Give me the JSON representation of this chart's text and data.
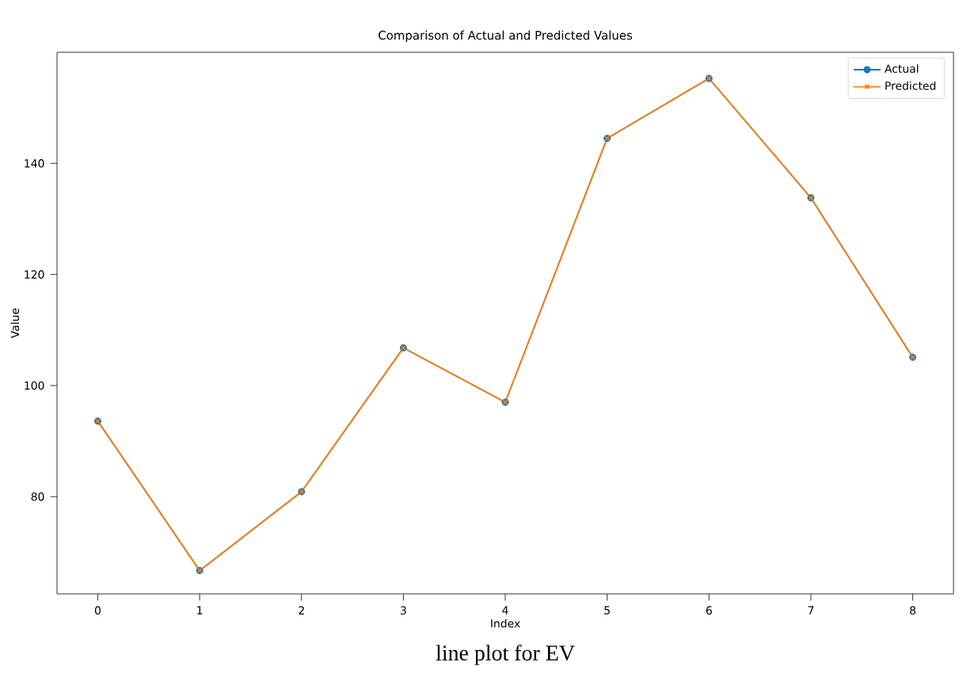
{
  "chart_data": {
    "type": "line",
    "title": "Comparison of Actual and Predicted Values",
    "xlabel": "Index",
    "ylabel": "Value",
    "x": [
      0,
      1,
      2,
      3,
      4,
      5,
      6,
      7,
      8
    ],
    "series": [
      {
        "name": "Actual",
        "color": "#1f77b4",
        "marker": "circle",
        "values": [
          93.6,
          66.7,
          80.9,
          106.8,
          97.0,
          144.5,
          155.3,
          133.8,
          105.1
        ]
      },
      {
        "name": "Predicted",
        "color": "#ff7f0e",
        "marker": "cross",
        "values": [
          93.6,
          66.7,
          80.9,
          106.8,
          97.0,
          144.5,
          155.3,
          133.8,
          105.1
        ]
      }
    ],
    "xlim": [
      -0.4,
      8.4
    ],
    "xticks": [
      0,
      1,
      2,
      3,
      4,
      5,
      6,
      7,
      8
    ],
    "ylim": [
      62.5,
      160
    ],
    "yticks": [
      80,
      100,
      120,
      140
    ],
    "legend": "top right",
    "grid": false,
    "line_style": "solid",
    "annotations": [
      "line plot for EV"
    ]
  }
}
